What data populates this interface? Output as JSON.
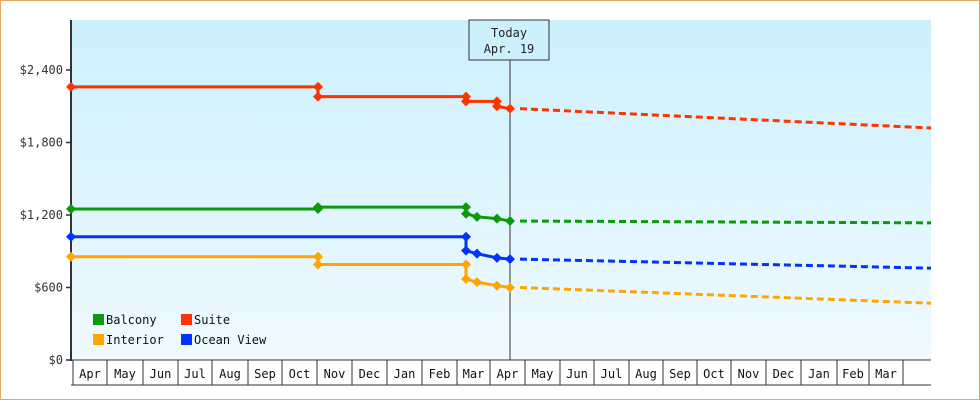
{
  "chart_data": {
    "type": "line",
    "title": "",
    "xlabel": "",
    "ylabel": "",
    "ylim": [
      0,
      2800
    ],
    "yticks": [
      {
        "value": 0,
        "label": "$0"
      },
      {
        "value": 600,
        "label": "$600"
      },
      {
        "value": 1200,
        "label": "$1,200"
      },
      {
        "value": 1800,
        "label": "$1,800"
      },
      {
        "value": 2400,
        "label": "$2,400"
      }
    ],
    "x_months": [
      "Apr",
      "May",
      "Jun",
      "Jul",
      "Aug",
      "Sep",
      "Oct",
      "Nov",
      "Dec",
      "Jan",
      "Feb",
      "Mar",
      "Apr",
      "May",
      "Jun",
      "Jul",
      "Aug",
      "Sep",
      "Oct",
      "Nov",
      "Dec",
      "Jan",
      "Feb",
      "Mar",
      ""
    ],
    "today_marker": {
      "line1": "Today",
      "line2": "Apr. 19"
    },
    "legend": [
      {
        "name": "Balcony",
        "color": "#0c9a0c"
      },
      {
        "name": "Suite",
        "color": "#ff3300"
      },
      {
        "name": "Interior",
        "color": "#ffa500"
      },
      {
        "name": "Ocean View",
        "color": "#0033ff"
      }
    ],
    "legend_position": "bottom-left inside plot",
    "grid": false,
    "series": [
      {
        "name": "Suite",
        "color": "#ff3300",
        "historical": [
          {
            "date": "Apr (start)",
            "value": 2260
          },
          {
            "date": "Nov 1",
            "value": 2260
          },
          {
            "date": "Nov 1",
            "value": 2180
          },
          {
            "date": "Mar 1",
            "value": 2180
          },
          {
            "date": "Mar 1",
            "value": 2140
          },
          {
            "date": "Apr 1",
            "value": 2140
          },
          {
            "date": "Apr 1",
            "value": 2100
          },
          {
            "date": "Apr 19",
            "value": 2080
          }
        ],
        "forecast": [
          {
            "date": "Apr 19",
            "value": 2080
          },
          {
            "date": "Mar end",
            "value": 1920
          }
        ]
      },
      {
        "name": "Balcony",
        "color": "#0c9a0c",
        "historical": [
          {
            "date": "Apr (start)",
            "value": 1250
          },
          {
            "date": "Nov 1",
            "value": 1250
          },
          {
            "date": "Nov 1",
            "value": 1265
          },
          {
            "date": "Mar 1",
            "value": 1265
          },
          {
            "date": "Mar 1",
            "value": 1210
          },
          {
            "date": "Mar 10",
            "value": 1185
          },
          {
            "date": "Apr 1",
            "value": 1170
          },
          {
            "date": "Apr 19",
            "value": 1150
          }
        ],
        "forecast": [
          {
            "date": "Apr 19",
            "value": 1150
          },
          {
            "date": "Mar end",
            "value": 1135
          }
        ]
      },
      {
        "name": "Ocean View",
        "color": "#0033ff",
        "historical": [
          {
            "date": "Apr (start)",
            "value": 1020
          },
          {
            "date": "Mar 1",
            "value": 1020
          },
          {
            "date": "Mar 1",
            "value": 905
          },
          {
            "date": "Mar 10",
            "value": 880
          },
          {
            "date": "Apr 1",
            "value": 845
          },
          {
            "date": "Apr 19",
            "value": 835
          }
        ],
        "forecast": [
          {
            "date": "Apr 19",
            "value": 835
          },
          {
            "date": "Mar end",
            "value": 760
          }
        ]
      },
      {
        "name": "Interior",
        "color": "#ffa500",
        "historical": [
          {
            "date": "Apr (start)",
            "value": 855
          },
          {
            "date": "Nov 1",
            "value": 855
          },
          {
            "date": "Nov 1",
            "value": 790
          },
          {
            "date": "Mar 1",
            "value": 790
          },
          {
            "date": "Mar 1",
            "value": 670
          },
          {
            "date": "Mar 10",
            "value": 645
          },
          {
            "date": "Apr 1",
            "value": 615
          },
          {
            "date": "Apr 19",
            "value": 600
          }
        ],
        "forecast": [
          {
            "date": "Apr 19",
            "value": 600
          },
          {
            "date": "Mar end",
            "value": 470
          }
        ]
      }
    ]
  }
}
